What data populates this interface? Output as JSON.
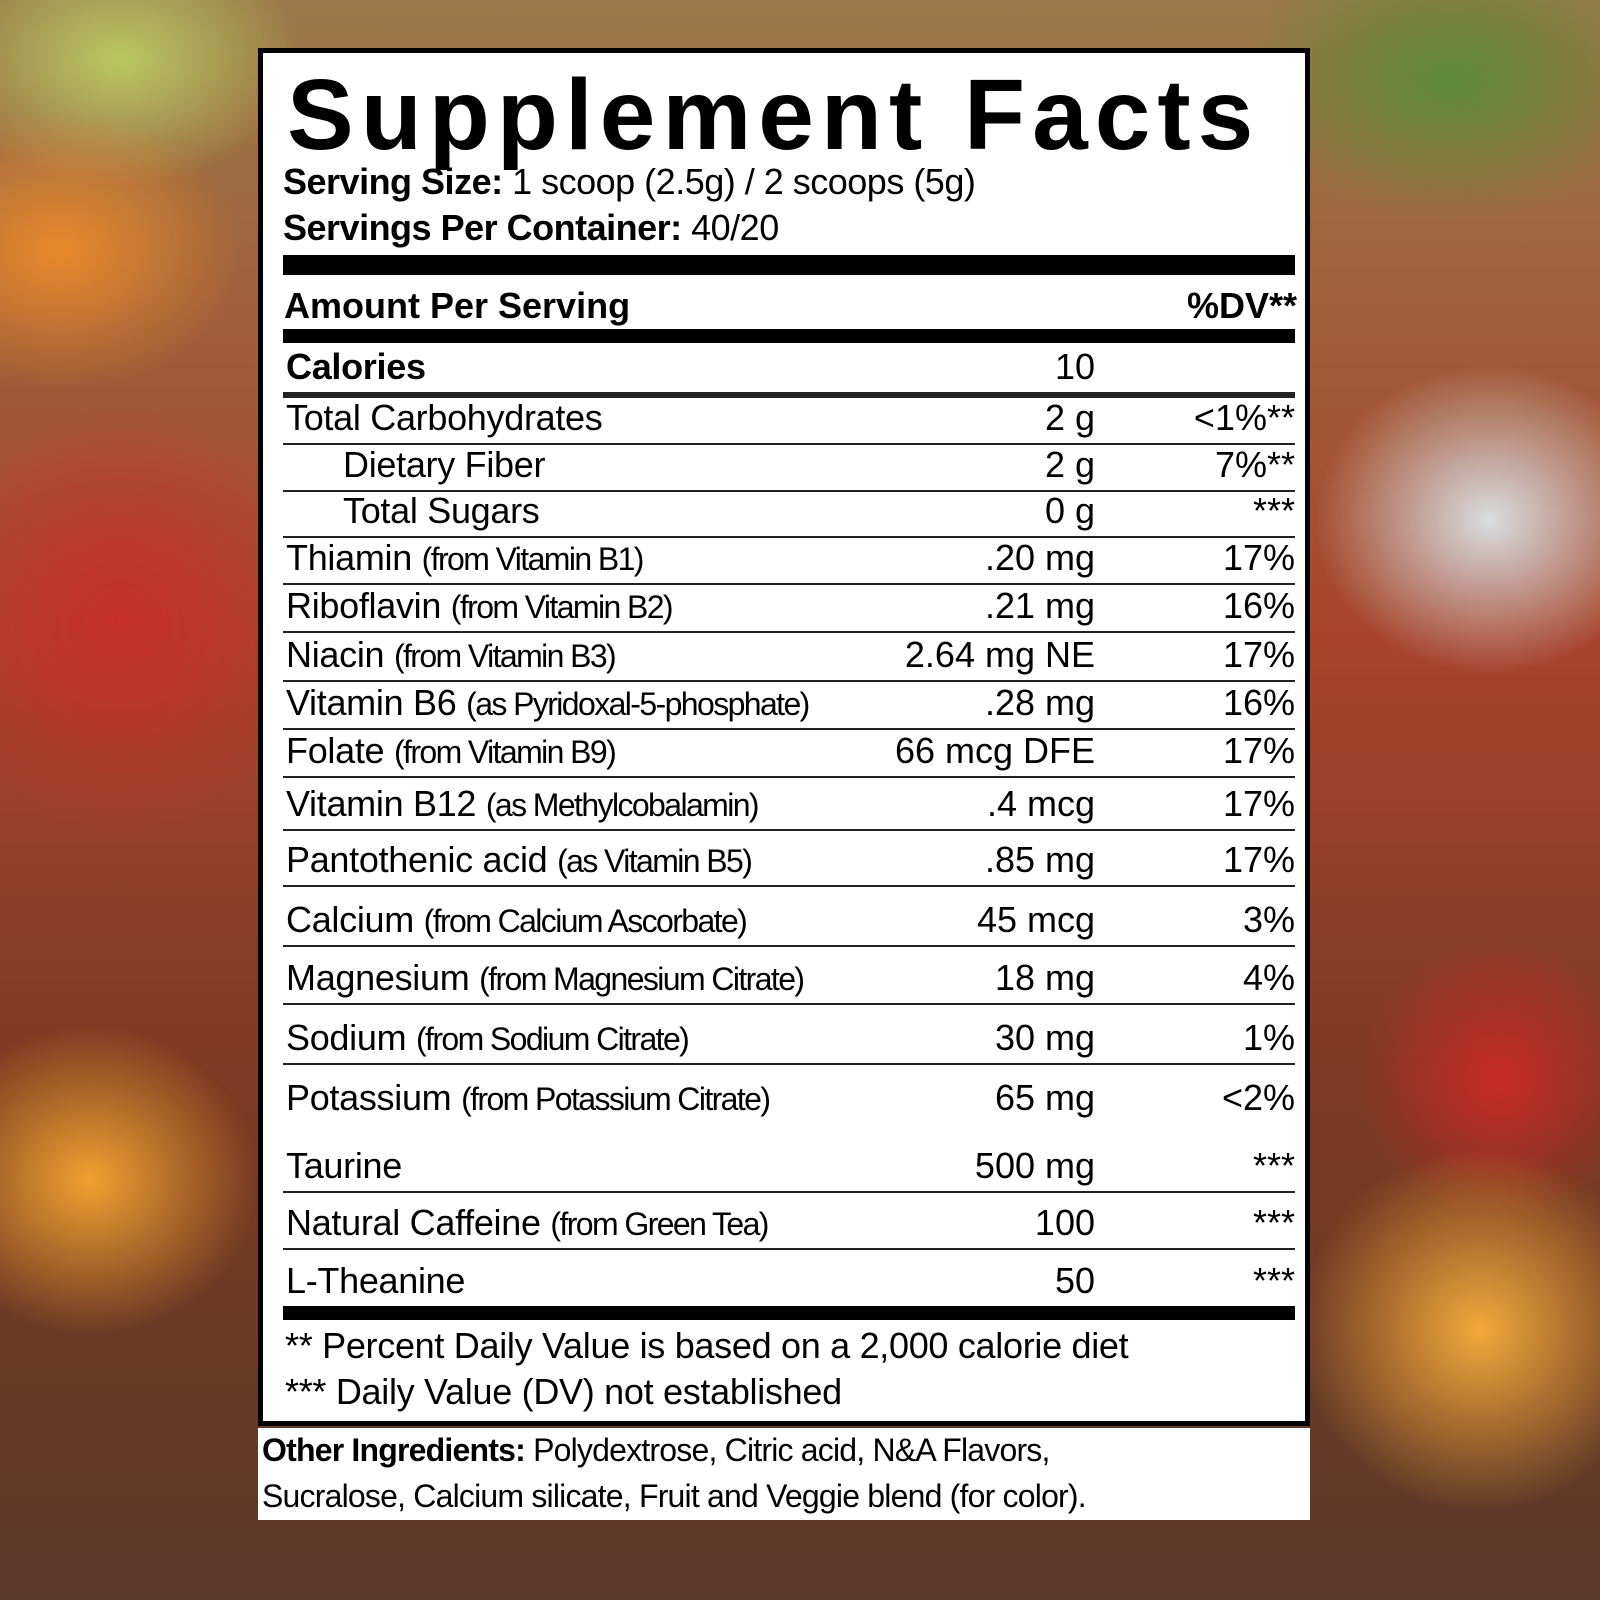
{
  "title": "Supplement Facts",
  "serving_size": {
    "label": "Serving Size:",
    "value": "1 scoop (2.5g) / 2 scoops (5g)"
  },
  "servings_per_container": {
    "label": "Servings Per Container:",
    "value": "40/20"
  },
  "header": {
    "amount": "Amount Per Serving",
    "dv": "%DV**"
  },
  "rows": [
    {
      "name": "Calories",
      "sub": "",
      "amount": "10",
      "dv": "",
      "bold": true
    },
    {
      "name": "Total Carbohydrates",
      "sub": "",
      "amount": "2 g",
      "dv": "<1%**"
    },
    {
      "name": "Dietary Fiber",
      "sub": "",
      "amount": "2 g",
      "dv": "7%**",
      "indent": true
    },
    {
      "name": "Total Sugars",
      "sub": "",
      "amount": "0 g",
      "dv": "***",
      "indent": true
    },
    {
      "name": "Thiamin",
      "sub": "(from Vitamin B1)",
      "amount": ".20 mg",
      "dv": "17%"
    },
    {
      "name": "Riboflavin",
      "sub": "(from Vitamin B2)",
      "amount": ".21 mg",
      "dv": "16%"
    },
    {
      "name": "Niacin",
      "sub": "(from Vitamin B3)",
      "amount": "2.64 mg NE",
      "dv": "17%"
    },
    {
      "name": "Vitamin B6",
      "sub": "(as Pyridoxal-5-phosphate)",
      "amount": ".28 mg",
      "dv": "16%"
    },
    {
      "name": "Folate",
      "sub": "(from Vitamin B9)",
      "amount": "66 mcg DFE",
      "dv": "17%"
    },
    {
      "name": "Vitamin B12",
      "sub": "(as Methylcobalamin)",
      "amount": ".4 mcg",
      "dv": "17%"
    },
    {
      "name": "Pantothenic acid",
      "sub": "(as Vitamin B5)",
      "amount": ".85 mg",
      "dv": "17%"
    },
    {
      "name": "Calcium",
      "sub": "(from Calcium Ascorbate)",
      "amount": "45 mcg",
      "dv": "3%"
    },
    {
      "name": "Magnesium",
      "sub": "(from Magnesium Citrate)",
      "amount": "18 mg",
      "dv": "4%"
    },
    {
      "name": "Sodium",
      "sub": "(from Sodium Citrate)",
      "amount": "30 mg",
      "dv": "1%"
    },
    {
      "name": "Potassium",
      "sub": "(from Potassium Citrate)",
      "amount": "65 mg",
      "dv": "<2%"
    },
    {
      "name": "Taurine",
      "sub": "",
      "amount": "500 mg",
      "dv": "***"
    },
    {
      "name": "Natural Caffeine",
      "sub": "(from Green Tea)",
      "amount": "100",
      "dv": "***"
    },
    {
      "name": "L-Theanine",
      "sub": "",
      "amount": "50",
      "dv": "***"
    }
  ],
  "footnotes": [
    "** Percent Daily Value is based on a 2,000 calorie diet",
    "*** Daily Value (DV) not established"
  ],
  "other_ingredients": {
    "label": "Other Ingredients:",
    "line1": "Polydextrose, Citric acid, N&A Flavors,",
    "line2": "Sucralose, Calcium silicate, Fruit and Veggie blend (for color)."
  }
}
